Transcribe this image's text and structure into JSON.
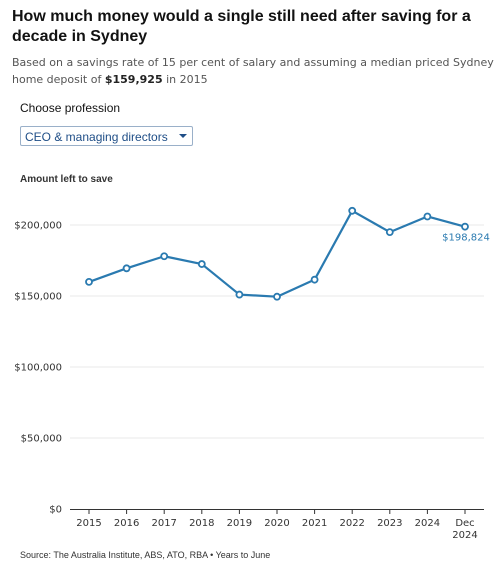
{
  "header": {
    "title": "How much money would a single still need after saving for a decade in Sydney",
    "subtitle_pre": "Based on a savings rate of 15 per cent of salary and assuming a median priced Sydney home deposit of ",
    "subtitle_bold": "$159,925",
    "subtitle_post": " in 2015"
  },
  "control": {
    "label": "Choose profession",
    "selected": "CEO & managing directors"
  },
  "colors": {
    "line": "#2a7ab0",
    "grid": "#e8e8e8",
    "axis": "#333333"
  },
  "chart_data": {
    "type": "line",
    "ylabel": "Amount left to save",
    "categories": [
      "2015",
      "2016",
      "2017",
      "2018",
      "2019",
      "2020",
      "2021",
      "2022",
      "2023",
      "2024",
      "Dec 2024"
    ],
    "series": [
      {
        "values": [
          159925,
          169500,
          178000,
          172500,
          151000,
          149500,
          161500,
          210000,
          195000,
          206000,
          198824
        ]
      }
    ],
    "ylim": [
      0,
      210000
    ],
    "yticks": [
      0,
      50000,
      100000,
      150000,
      200000
    ],
    "ytick_labels": [
      "$0",
      "$50,000",
      "$100,000",
      "$150,000",
      "$200,000"
    ],
    "annotation": "$198,824",
    "grid": true
  },
  "footer": {
    "source": "Source: The Australia Institute, ABS, ATO, RBA • Years to June"
  }
}
